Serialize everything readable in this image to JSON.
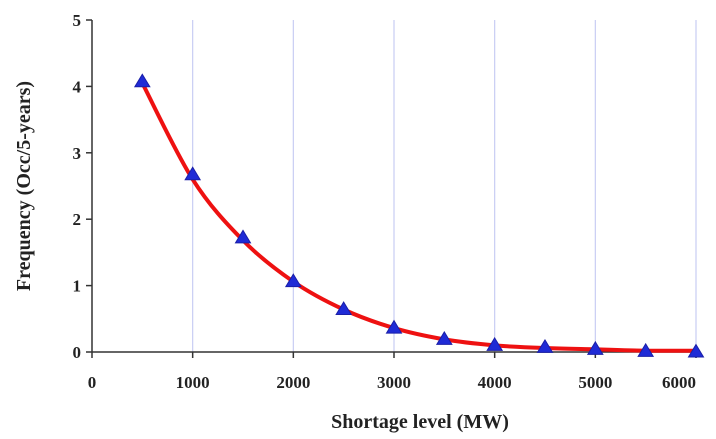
{
  "chart_data": {
    "type": "line",
    "title": "",
    "xlabel": "Shortage level (MW)",
    "ylabel": "Frequency (Occ/5-years)",
    "xlim": [
      0,
      6000
    ],
    "ylim": [
      0,
      5
    ],
    "xticks": [
      0,
      1000,
      2000,
      3000,
      4000,
      5000,
      6000
    ],
    "yticks": [
      0,
      1,
      2,
      3,
      4,
      5
    ],
    "grid": "vertical",
    "legend": "none",
    "series": [
      {
        "kind": "markers",
        "marker": "triangle",
        "color": "#1f2bd6",
        "x": [
          500,
          1000,
          1500,
          2000,
          2500,
          3000,
          3500,
          4000,
          4500,
          5000,
          5500,
          6000
        ],
        "y": [
          4.07,
          2.67,
          1.72,
          1.06,
          0.64,
          0.36,
          0.19,
          0.1,
          0.07,
          0.04,
          0.01,
          0.0
        ]
      },
      {
        "kind": "line",
        "color": "#ee1111",
        "x": [
          500,
          1000,
          1500,
          2000,
          2500,
          3000,
          3500,
          4000,
          4500,
          5000,
          5500,
          6000
        ],
        "y": [
          4.05,
          2.6,
          1.68,
          1.06,
          0.64,
          0.36,
          0.19,
          0.1,
          0.06,
          0.04,
          0.02,
          0.02
        ]
      }
    ]
  }
}
